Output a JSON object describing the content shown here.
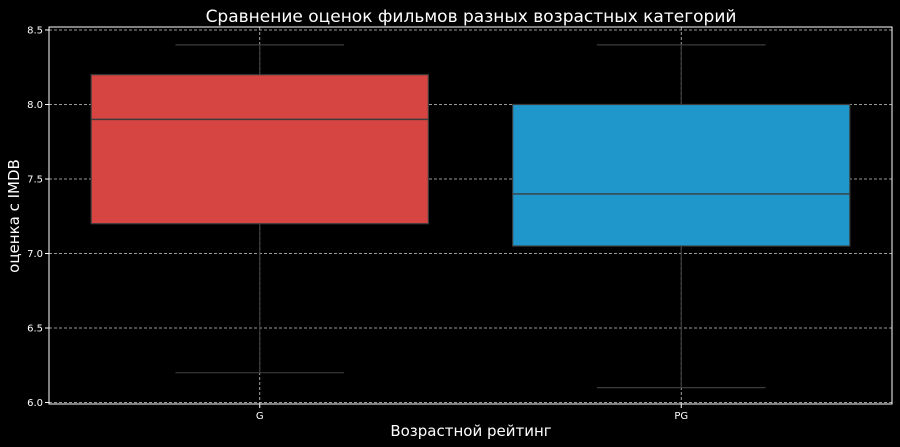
{
  "chart_data": {
    "type": "box",
    "title": "Сравнение оценок фильмов разных возрастных категорий",
    "xlabel": "Возрастной рейтинг",
    "ylabel": "оценка с IMDB",
    "ylim": [
      5.99,
      8.52
    ],
    "yticks": [
      "6.0",
      "6.5",
      "7.0",
      "7.5",
      "8.0",
      "8.5"
    ],
    "grid": true,
    "legend": "none",
    "categories": [
      "G",
      "PG"
    ],
    "boxes": [
      {
        "category": "G",
        "whisker_low": 6.2,
        "q1": 7.2,
        "median": 7.9,
        "q3": 8.2,
        "whisker_high": 8.4,
        "color": "#d64541"
      },
      {
        "category": "PG",
        "whisker_low": 6.1,
        "q1": 7.05,
        "median": 7.4,
        "q3": 8.0,
        "whisker_high": 8.4,
        "color": "#1f97ca"
      }
    ],
    "colors": {
      "background": "#000000",
      "axes_frame": "#ffffff",
      "grid": "#cccccc",
      "lines": "#3c3c3c",
      "text": "#ffffff"
    }
  }
}
